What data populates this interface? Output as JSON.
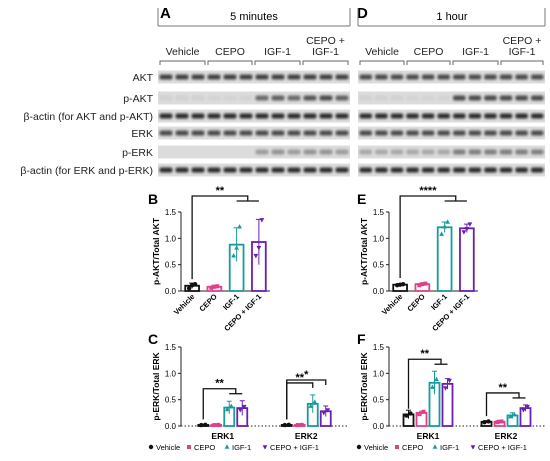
{
  "panel_letters": {
    "A": "A",
    "B": "B",
    "C": "C",
    "D": "D",
    "E": "E",
    "F": "F"
  },
  "blot": {
    "time_headers": [
      "5 minutes",
      "1 hour"
    ],
    "group_labels": [
      "Vehicle",
      "CEPO",
      "IGF-1",
      "CEPO +\nIGF-1"
    ],
    "row_labels": [
      "AKT",
      "p-AKT",
      "β-actin (for AKT and p-AKT)",
      "ERK",
      "p-ERK",
      "β-actin (for ERK and p-ERK)"
    ]
  },
  "colors": {
    "vehicle": "#111111",
    "cepo": "#e0408a",
    "igf1": "#1a9a9a",
    "cepo_igf1": "#6a1fb0"
  },
  "chart_data": [
    {
      "panel": "B",
      "type": "bar",
      "ylabel": "p-AKT/Total AKT",
      "ylim": [
        0,
        1.5
      ],
      "yticks": [
        "0.0",
        "0.5",
        "1.0",
        "1.5"
      ],
      "categories": [
        "Vehicle",
        "CEPO",
        "IGF-1",
        "CEPO + IGF-1"
      ],
      "values": [
        0.1,
        0.08,
        0.88,
        0.93
      ],
      "errors": [
        0.05,
        0.03,
        0.32,
        0.43
      ],
      "points": [
        [
          0.05,
          0.11,
          0.13
        ],
        [
          0.06,
          0.08,
          0.09
        ],
        [
          0.67,
          0.82,
          1.22
        ],
        [
          0.67,
          0.82,
          1.35
        ]
      ],
      "significance": [
        {
          "label": "**",
          "from": 0,
          "to": [
            2,
            3
          ]
        }
      ]
    },
    {
      "panel": "C",
      "type": "bar",
      "ylabel": "p-ERK/Total ERK",
      "ylim": [
        0,
        1.5
      ],
      "yticks": [
        "0.0",
        "0.5",
        "1.0",
        "1.5"
      ],
      "categories": [
        "ERK1",
        "ERK2"
      ],
      "series": [
        {
          "name": "Vehicle",
          "values": [
            0.02,
            0.02
          ],
          "errors": [
            0.01,
            0.01
          ]
        },
        {
          "name": "CEPO",
          "values": [
            0.02,
            0.02
          ],
          "errors": [
            0.01,
            0.01
          ]
        },
        {
          "name": "IGF-1",
          "values": [
            0.35,
            0.42
          ],
          "errors": [
            0.12,
            0.17
          ]
        },
        {
          "name": "CEPO + IGF-1",
          "values": [
            0.34,
            0.28
          ],
          "errors": [
            0.14,
            0.1
          ]
        }
      ],
      "significance": [
        {
          "label": "**",
          "group": "ERK1",
          "from": 0,
          "to": [
            2,
            3
          ]
        },
        {
          "label": "**",
          "group": "ERK2",
          "from": 0,
          "to": [
            2
          ]
        },
        {
          "label": "*",
          "group": "ERK2",
          "from": 0,
          "to": [
            3
          ]
        }
      ],
      "legend": [
        "Vehicle",
        "CEPO",
        "IGF-1",
        "CEPO + IGF-1"
      ]
    },
    {
      "panel": "E",
      "type": "bar",
      "ylabel": "p-AKT/Total AKT",
      "ylim": [
        0,
        1.5
      ],
      "yticks": [
        "0.0",
        "0.5",
        "1.0",
        "1.5"
      ],
      "categories": [
        "Vehicle",
        "CEPO",
        "IGF-1",
        "CEPO + IGF-1"
      ],
      "values": [
        0.12,
        0.13,
        1.21,
        1.19
      ],
      "errors": [
        0.02,
        0.02,
        0.1,
        0.08
      ],
      "points": [
        [
          0.11,
          0.12,
          0.13
        ],
        [
          0.11,
          0.13,
          0.14
        ],
        [
          1.08,
          1.22,
          1.31
        ],
        [
          1.12,
          1.18,
          1.27
        ]
      ],
      "significance": [
        {
          "label": "****",
          "from": 0,
          "to": [
            2,
            3
          ]
        }
      ]
    },
    {
      "panel": "F",
      "type": "bar",
      "ylabel": "p-ERK/Total ERK",
      "ylim": [
        0,
        1.5
      ],
      "yticks": [
        "0.0",
        "0.5",
        "1.0",
        "1.5"
      ],
      "categories": [
        "ERK1",
        "ERK2"
      ],
      "series": [
        {
          "name": "Vehicle",
          "values": [
            0.22,
            0.08
          ],
          "errors": [
            0.08,
            0.02
          ]
        },
        {
          "name": "CEPO",
          "values": [
            0.25,
            0.08
          ],
          "errors": [
            0.03,
            0.03
          ]
        },
        {
          "name": "IGF-1",
          "values": [
            0.82,
            0.2
          ],
          "errors": [
            0.22,
            0.05
          ]
        },
        {
          "name": "CEPO + IGF-1",
          "values": [
            0.8,
            0.34
          ],
          "errors": [
            0.1,
            0.06
          ]
        }
      ],
      "significance": [
        {
          "label": "**",
          "group": "ERK1",
          "from": 0,
          "to": [
            2,
            3
          ]
        },
        {
          "label": "**",
          "group": "ERK2",
          "from": 0,
          "to": [
            2,
            3
          ]
        }
      ],
      "legend": [
        "Vehicle",
        "CEPO",
        "IGF-1",
        "CEPO + IGF-1"
      ]
    }
  ]
}
